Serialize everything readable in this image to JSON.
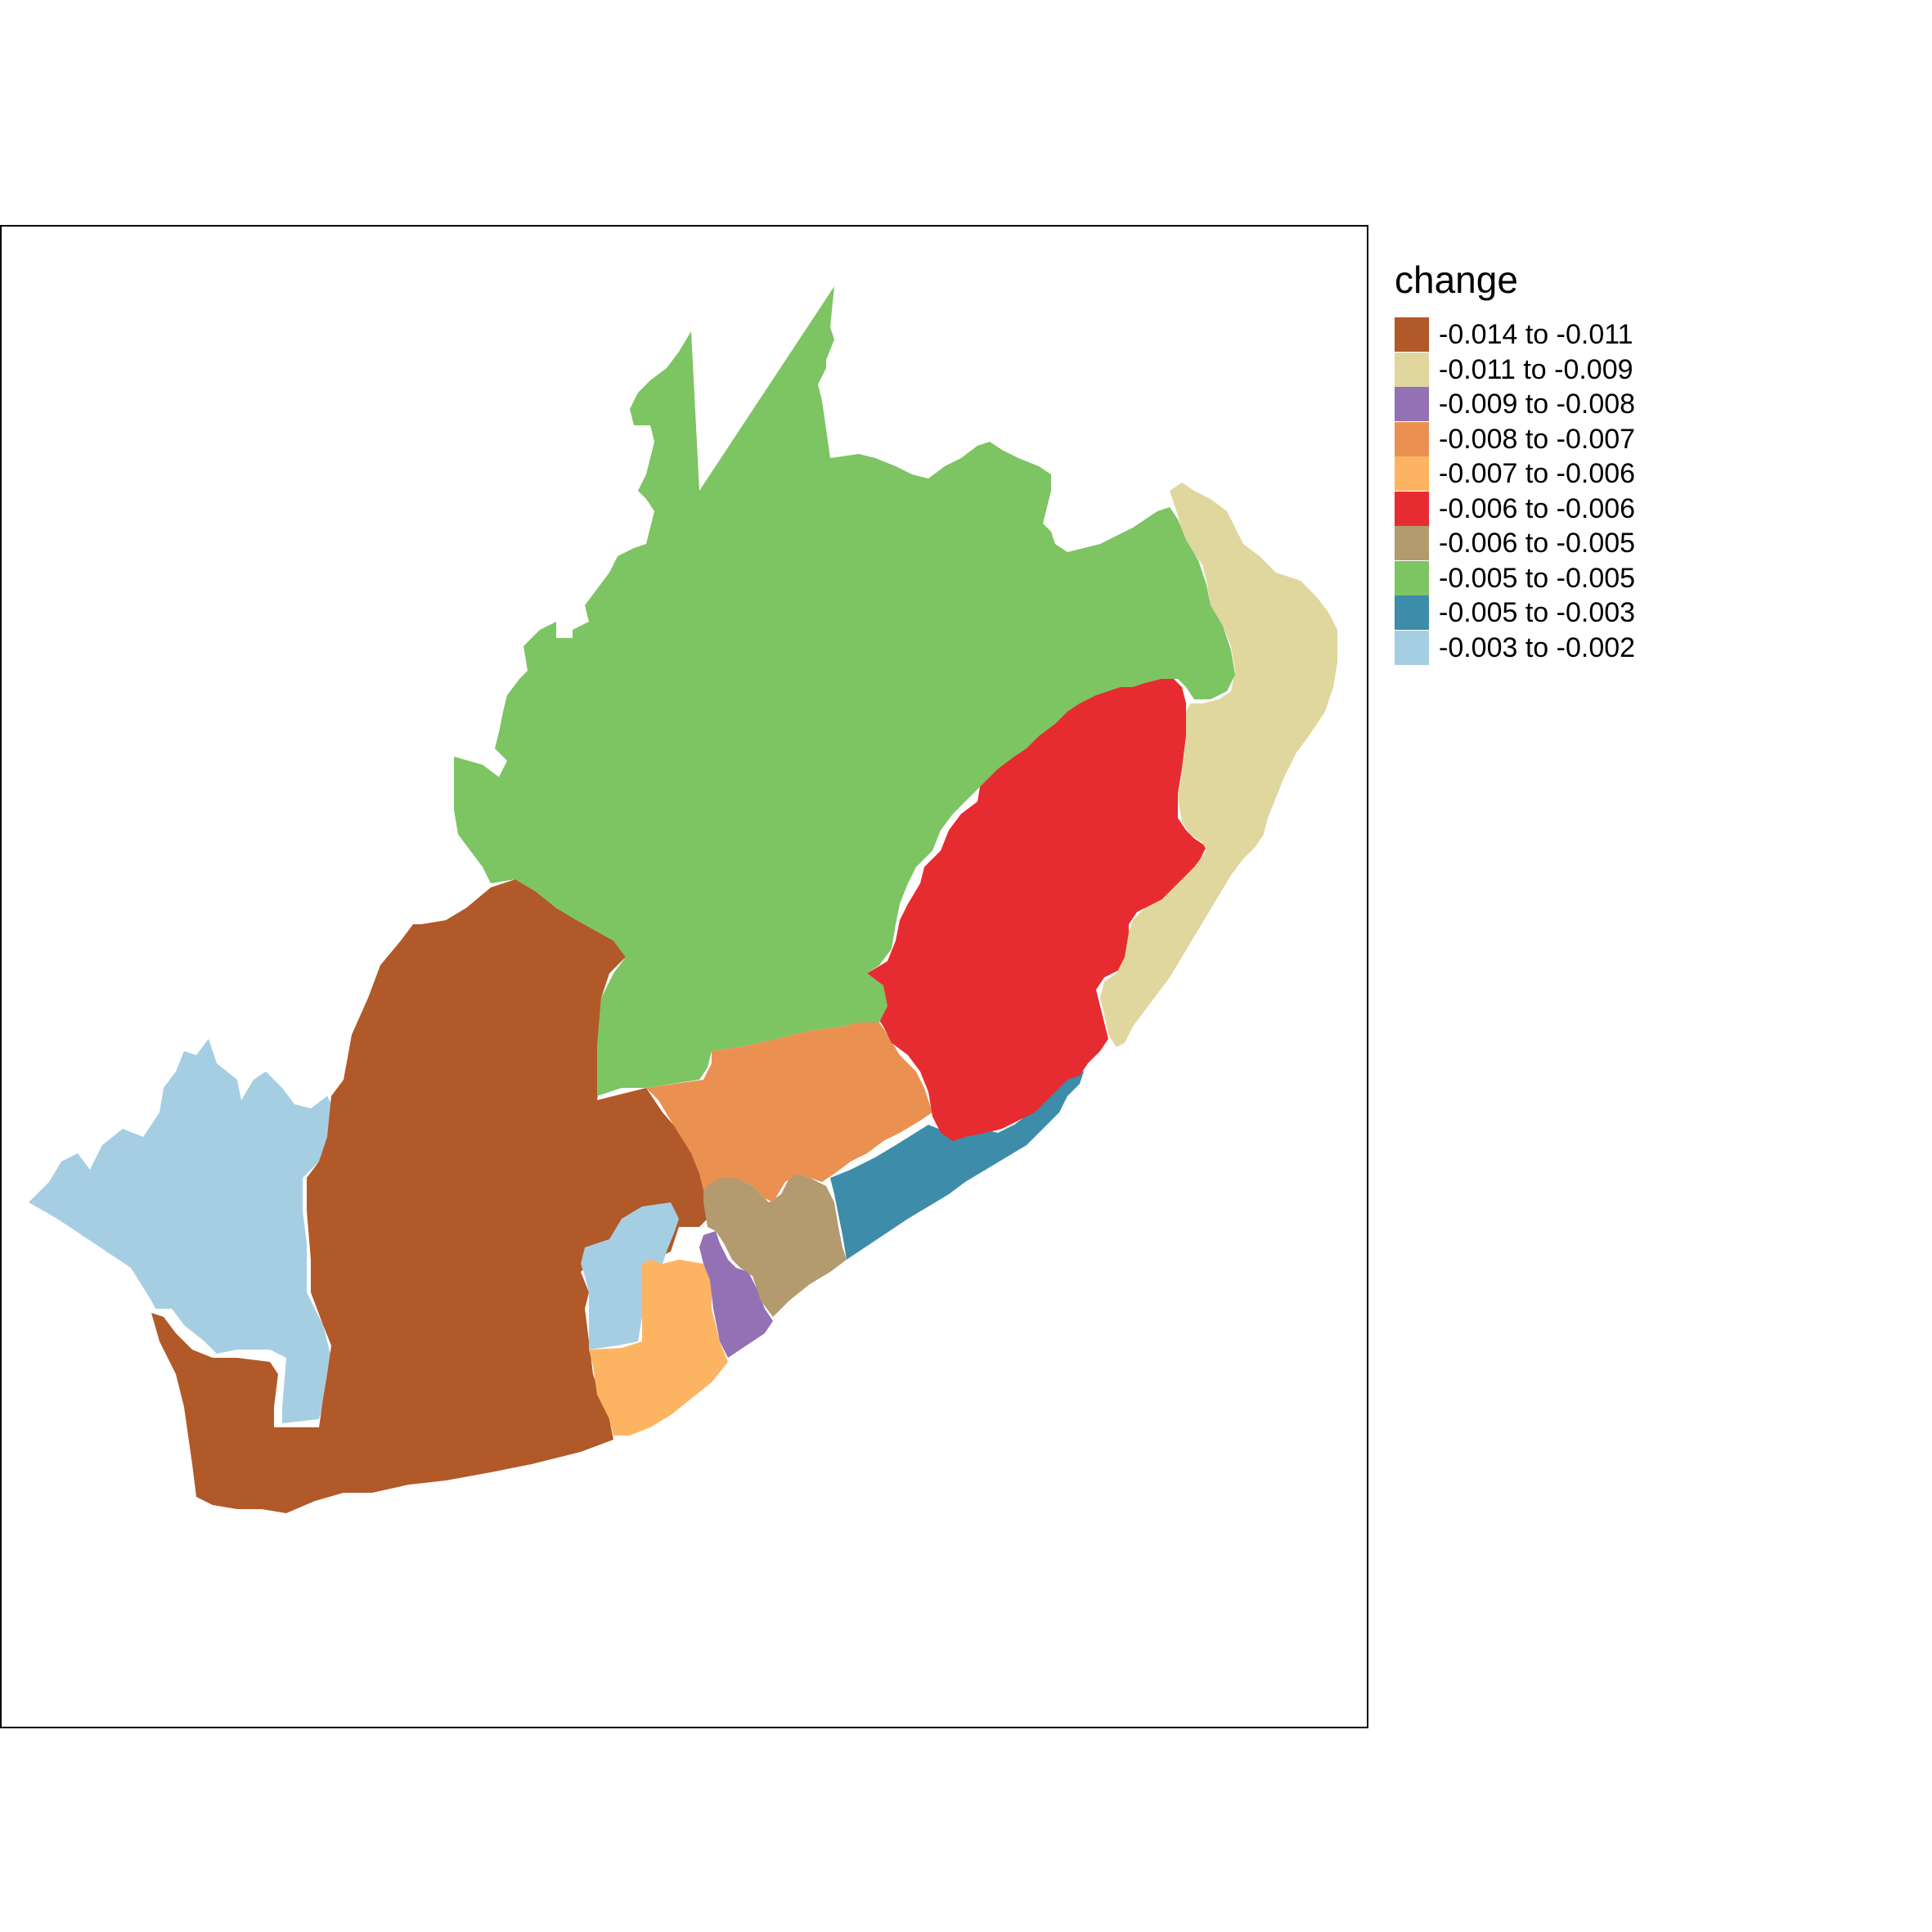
{
  "legend": {
    "title": "change",
    "items": [
      {
        "label": "-0.014 to -0.011",
        "color": "#B15928"
      },
      {
        "label": "-0.011 to -0.009",
        "color": "#DFD79E"
      },
      {
        "label": "-0.009 to -0.008",
        "color": "#9471B4"
      },
      {
        "label": "-0.008 to -0.007",
        "color": "#EA9152"
      },
      {
        "label": "-0.007 to -0.006",
        "color": "#FDB462"
      },
      {
        "label": "-0.006 to -0.006",
        "color": "#E72C31"
      },
      {
        "label": "-0.006 to -0.005",
        "color": "#B39A6F"
      },
      {
        "label": "-0.005 to -0.005",
        "color": "#7DC462"
      },
      {
        "label": "-0.005 to -0.003",
        "color": "#3D8CAA"
      },
      {
        "label": "-0.003 to -0.002",
        "color": "#A6CEE3"
      }
    ]
  }
}
